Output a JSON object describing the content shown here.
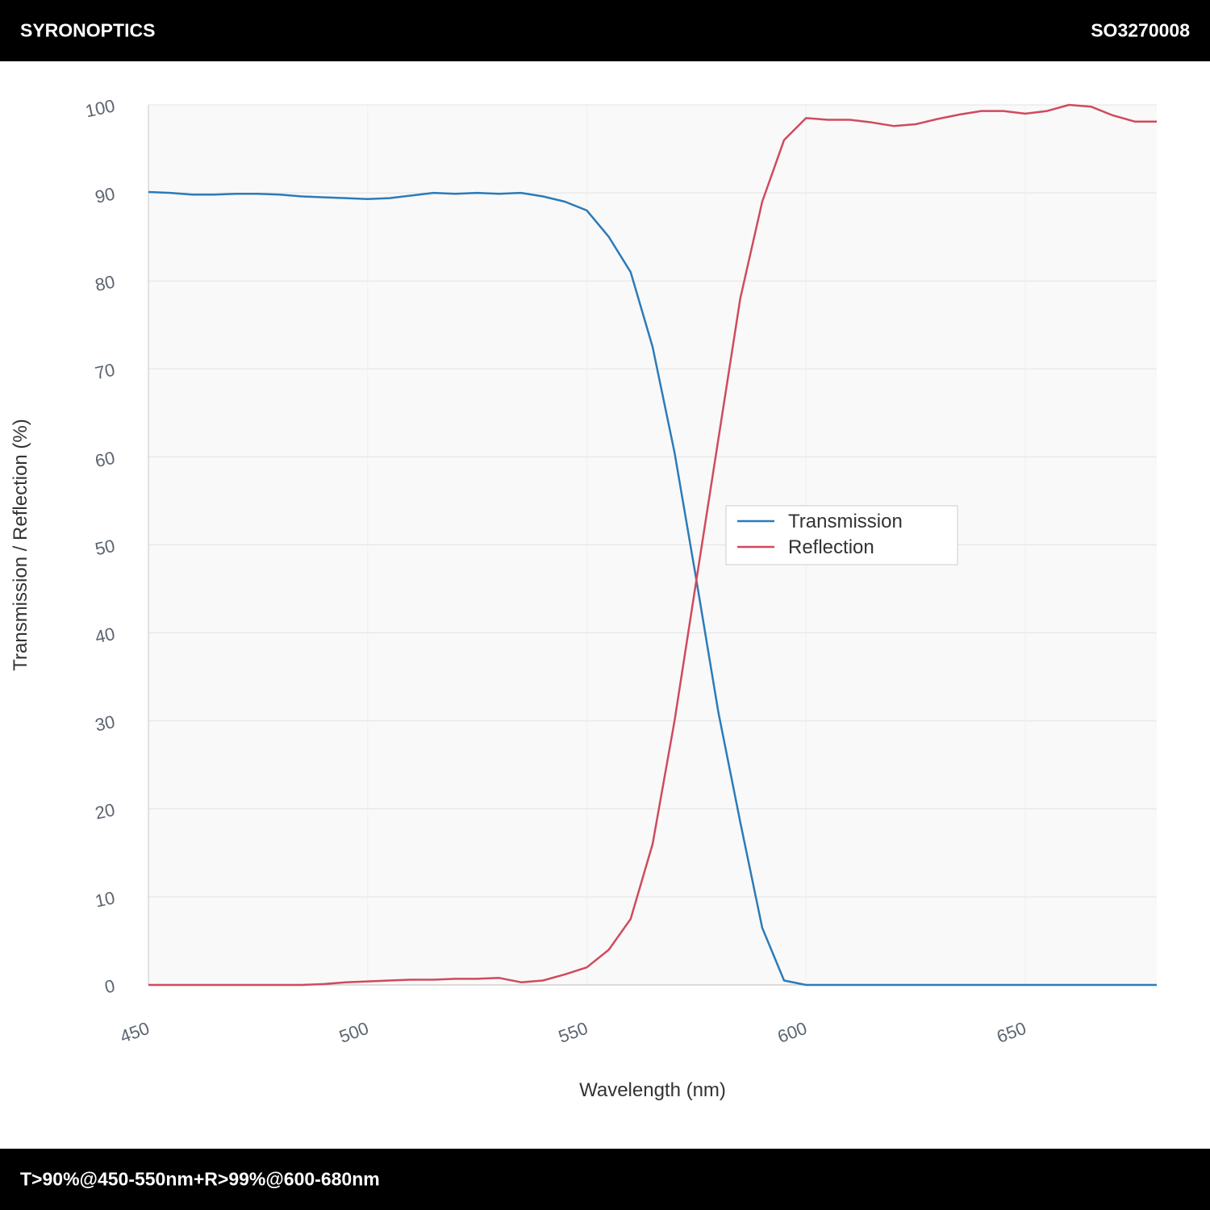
{
  "header": {
    "brand": "SYRONOPTICS",
    "code": "SO3270008"
  },
  "footer": {
    "spec": "T>90%@450-550nm+R>99%@600-680nm"
  },
  "chart_data": {
    "type": "line",
    "x_label": "Wavelength (nm)",
    "y_label": "Transmission / Reflection (%)",
    "x": [
      450,
      455,
      460,
      465,
      470,
      475,
      480,
      485,
      490,
      495,
      500,
      505,
      510,
      515,
      520,
      525,
      530,
      535,
      540,
      545,
      550,
      555,
      560,
      565,
      570,
      575,
      580,
      585,
      590,
      595,
      600,
      605,
      610,
      615,
      620,
      625,
      630,
      635,
      640,
      645,
      650,
      655,
      660,
      665,
      670,
      675,
      680
    ],
    "series": [
      {
        "name": "Transmission",
        "color": "#2b7bb9",
        "values": [
          90.1,
          90.0,
          89.8,
          89.8,
          89.9,
          89.9,
          89.8,
          89.6,
          89.5,
          89.4,
          89.3,
          89.4,
          89.7,
          90.0,
          89.9,
          90.0,
          89.9,
          90.0,
          89.6,
          89.0,
          88.0,
          85.0,
          81.0,
          72.5,
          60.5,
          46.0,
          31.0,
          18.5,
          6.5,
          0.5,
          0,
          0,
          0,
          0,
          0,
          0,
          0,
          0,
          0,
          0,
          0,
          0,
          0,
          0,
          0,
          0,
          0
        ]
      },
      {
        "name": "Reflection",
        "color": "#d04a5e",
        "values": [
          0,
          0,
          0,
          0,
          0,
          0,
          0,
          0,
          0.1,
          0.3,
          0.4,
          0.5,
          0.6,
          0.6,
          0.7,
          0.7,
          0.8,
          0.3,
          0.5,
          1.2,
          2.0,
          4.0,
          7.5,
          16,
          30,
          46,
          62,
          78,
          89,
          96,
          98.5,
          98.3,
          98.3,
          98.0,
          97.6,
          97.8,
          98.4,
          98.9,
          99.3,
          99.3,
          99.0,
          99.3,
          100,
          99.8,
          98.8,
          98.1,
          98.1
        ]
      }
    ],
    "xlim": [
      450,
      680
    ],
    "xticks": [
      450,
      500,
      550,
      600,
      650
    ],
    "ylim": [
      0,
      100
    ],
    "yticks": [
      0,
      10,
      20,
      30,
      40,
      50,
      60,
      70,
      80,
      90,
      100
    ],
    "grid": true
  }
}
